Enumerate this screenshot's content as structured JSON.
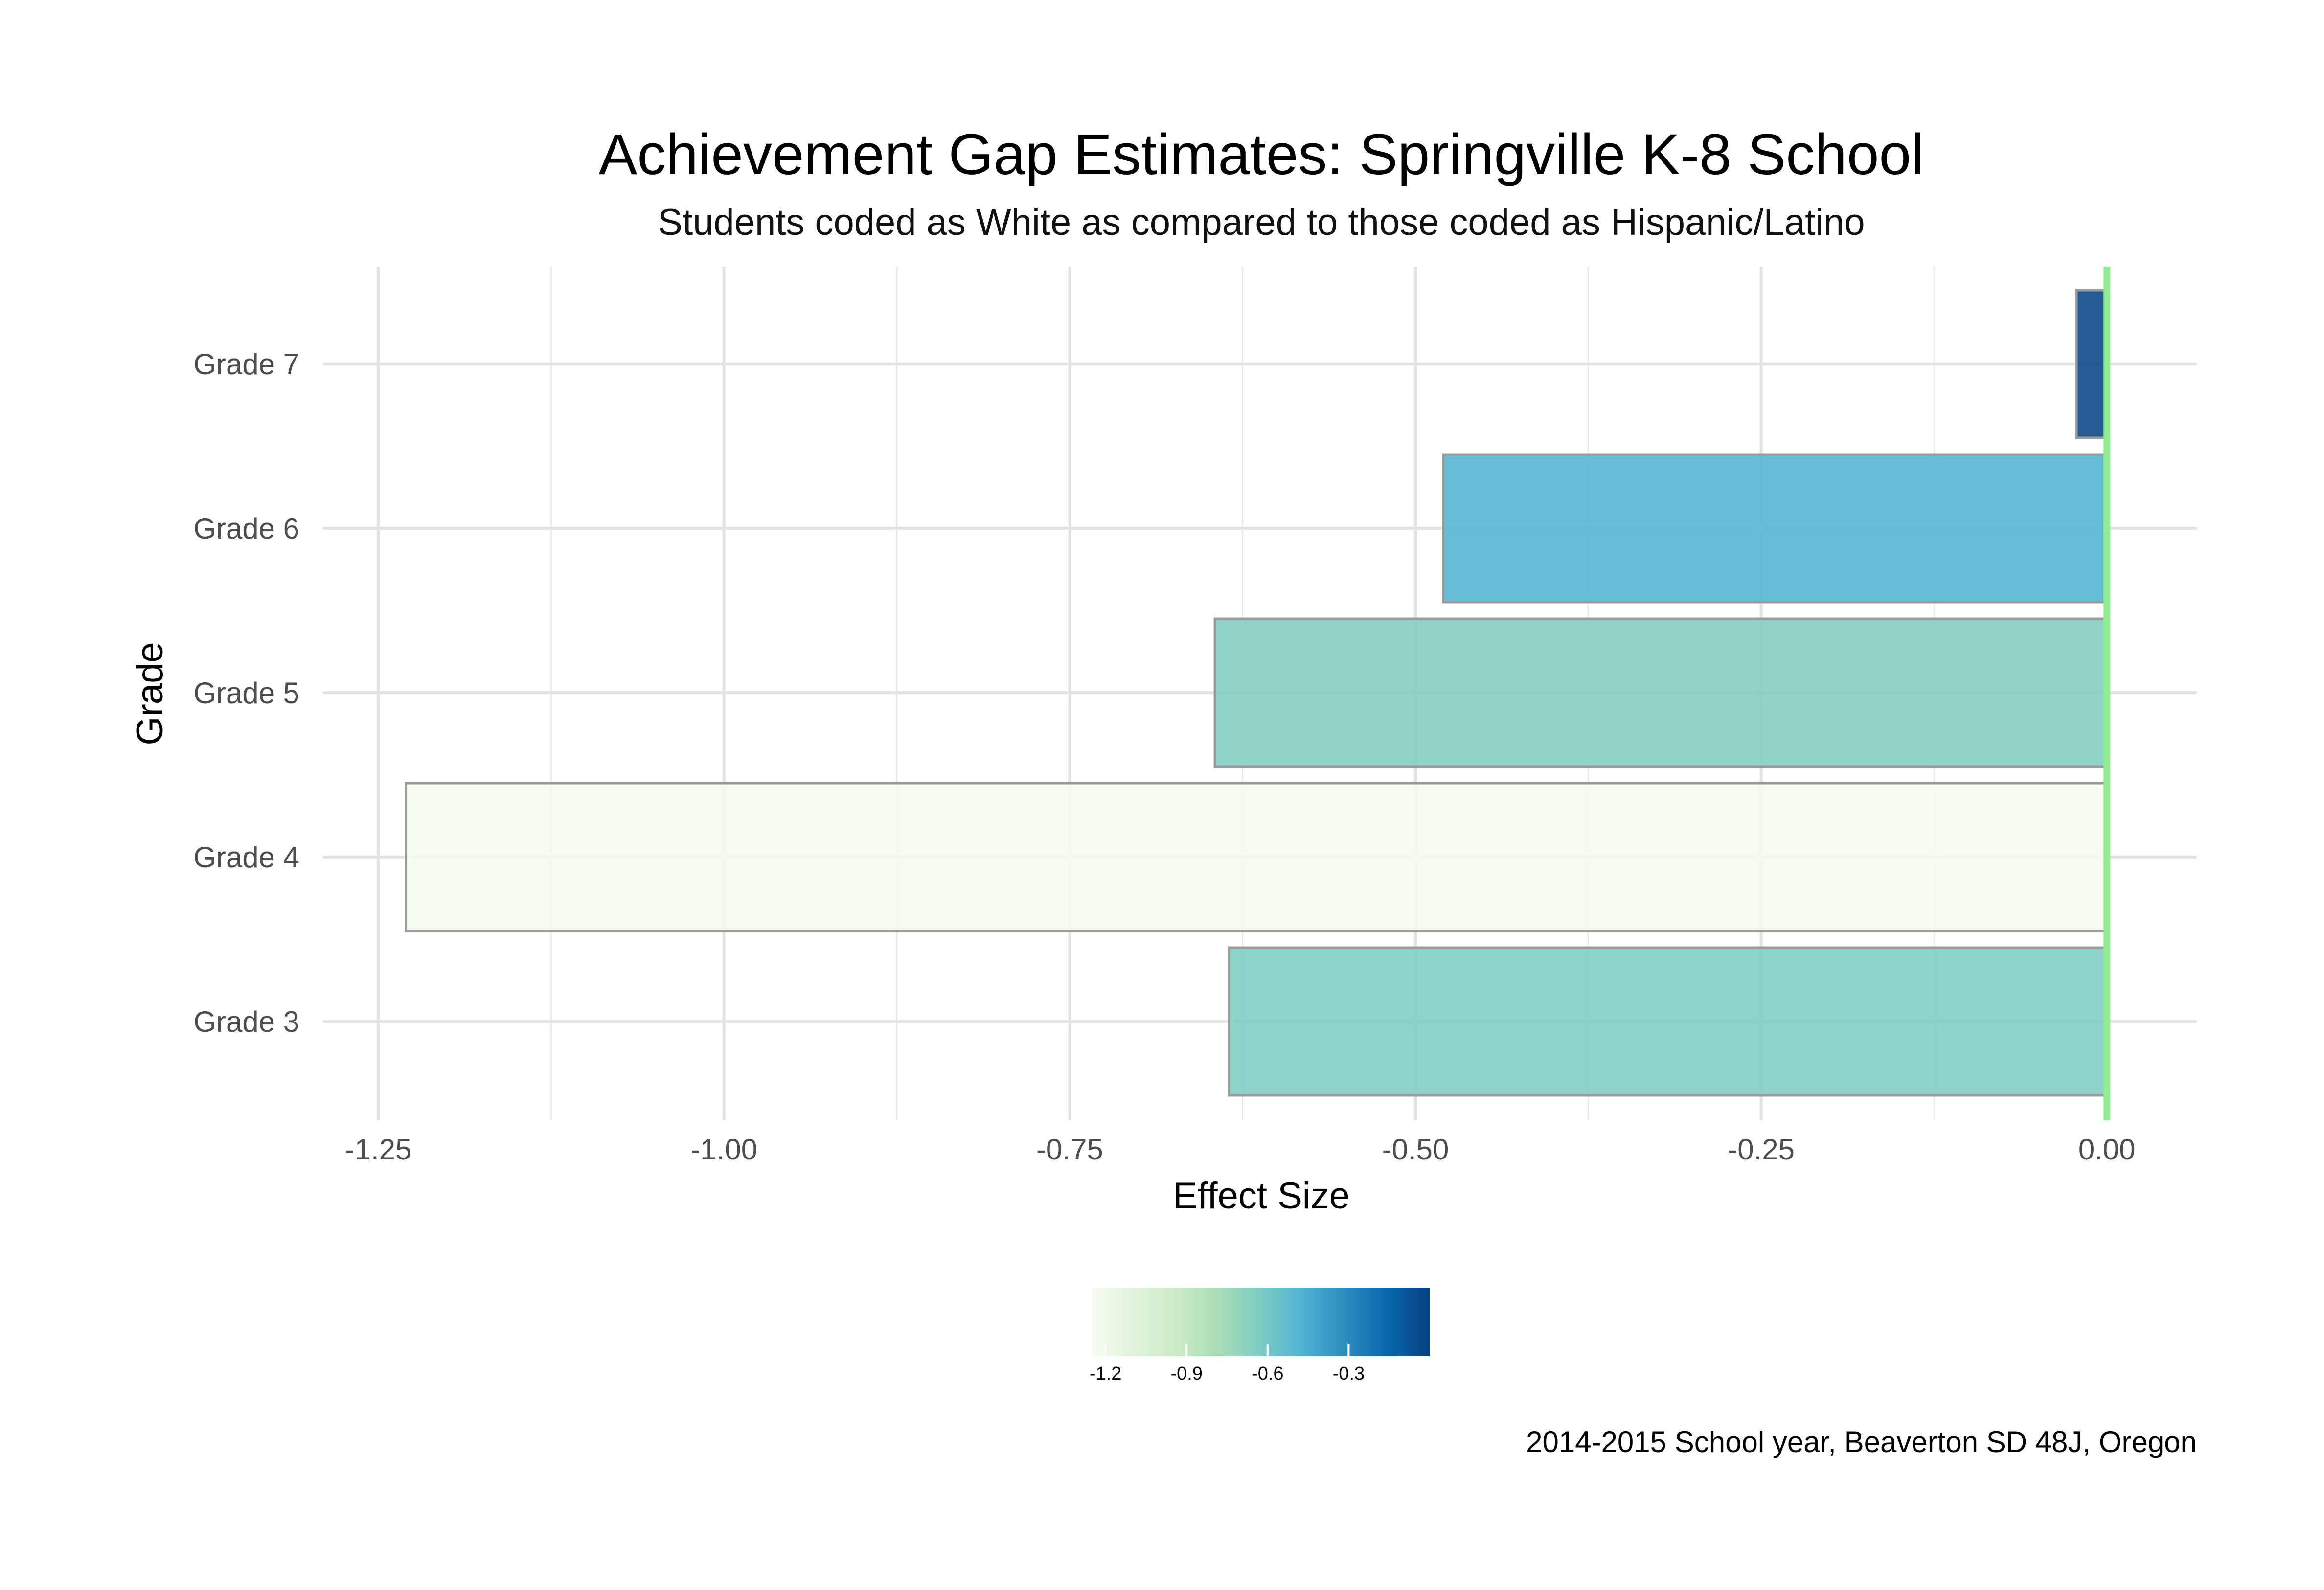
{
  "chart_data": {
    "type": "bar",
    "orientation": "horizontal",
    "title": "Achievement Gap Estimates: Springville K-8 School",
    "subtitle": "Students coded as White as compared to those coded as Hispanic/Latino",
    "xlabel": "Effect Size",
    "ylabel": "Grade",
    "caption": "2014-2015 School year, Beaverton SD 48J, Oregon",
    "categories": [
      "Grade 3",
      "Grade 4",
      "Grade 5",
      "Grade 6",
      "Grade 7"
    ],
    "values": [
      -0.635,
      -1.23,
      -0.645,
      -0.48,
      -0.022
    ],
    "xlim": [
      -1.29,
      0.065
    ],
    "x_ticks": [
      -1.25,
      -1.0,
      -0.75,
      -0.5,
      -0.25,
      0.0
    ],
    "x_tick_labels": [
      "-1.25",
      "-1.00",
      "-0.75",
      "-0.50",
      "-0.25",
      "0.00"
    ],
    "grid": true,
    "reference_line": {
      "x": 0.0,
      "color": "#90ee90"
    },
    "bar_outline_color": "#999999",
    "legend": {
      "position": "bottom",
      "type": "colorbar",
      "min": -1.25,
      "max": 0.0,
      "ticks": [
        -1.2,
        -0.9,
        -0.6,
        -0.3
      ],
      "tick_labels": [
        "-1.2",
        "-0.9",
        "-0.6",
        "-0.3"
      ],
      "colors": [
        "#f7fcf0",
        "#e0f3db",
        "#ccebc5",
        "#a8ddb5",
        "#7bccc4",
        "#4eb3d3",
        "#2b8cbe",
        "#0868ac",
        "#084081"
      ]
    }
  }
}
